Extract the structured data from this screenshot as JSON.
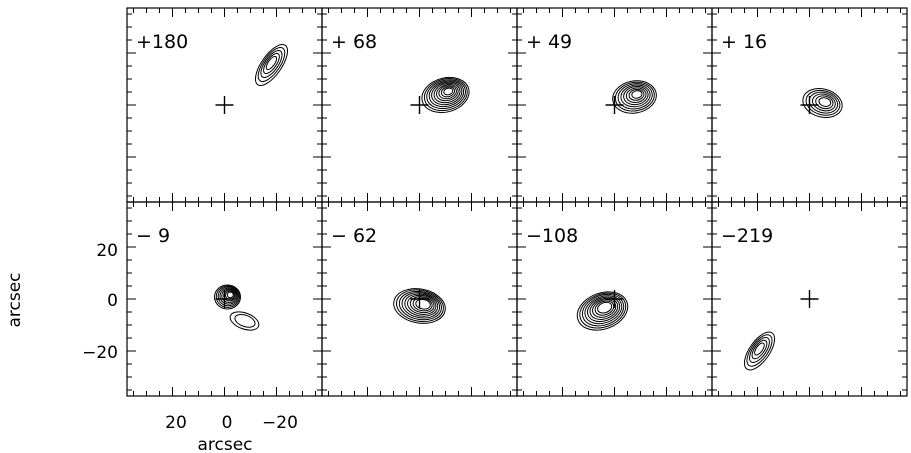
{
  "figure": {
    "panels": [
      {
        "label": "+180",
        "row": 0,
        "col": 0
      },
      {
        "label": "+ 68",
        "row": 0,
        "col": 1
      },
      {
        "label": "+ 49",
        "row": 0,
        "col": 2
      },
      {
        "label": "+ 16",
        "row": 0,
        "col": 3
      },
      {
        "label": "−  9",
        "row": 1,
        "col": 0
      },
      {
        "label": "− 62",
        "row": 1,
        "col": 1
      },
      {
        "label": "−108",
        "row": 1,
        "col": 2
      },
      {
        "label": "−219",
        "row": 1,
        "col": 3
      }
    ],
    "x_axis": {
      "label": "arcsec",
      "ticks": [
        {
          "value": 20,
          "text": "20"
        },
        {
          "value": 0,
          "text": "0"
        },
        {
          "value": -20,
          "text": "−20"
        }
      ],
      "range": [
        36,
        -36
      ]
    },
    "y_axis": {
      "label": "arcsec",
      "ticks": [
        {
          "value": 20,
          "text": "20"
        },
        {
          "value": 0,
          "text": "0"
        },
        {
          "value": -20,
          "text": "−20"
        }
      ],
      "range": [
        -36,
        36
      ]
    },
    "colors": {
      "line": "#000000",
      "background": "#ffffff"
    }
  }
}
